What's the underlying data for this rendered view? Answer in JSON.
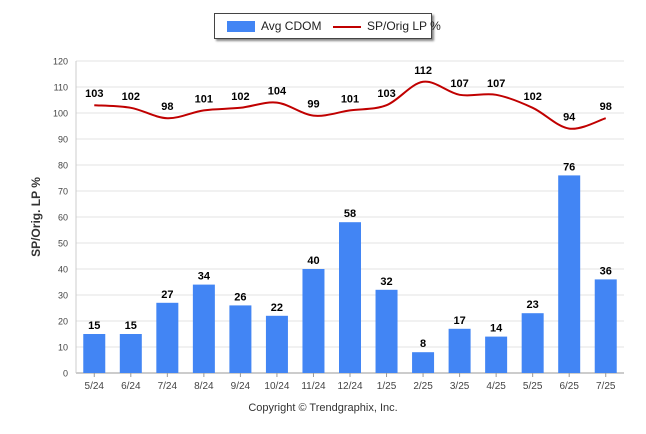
{
  "chart_data": {
    "type": "bar",
    "categories": [
      "5/24",
      "6/24",
      "7/24",
      "8/24",
      "9/24",
      "10/24",
      "11/24",
      "12/24",
      "1/25",
      "2/25",
      "3/25",
      "4/25",
      "5/25",
      "6/25",
      "7/25"
    ],
    "series": [
      {
        "name": "Avg CDOM",
        "type": "bar",
        "values": [
          15,
          15,
          27,
          34,
          26,
          22,
          40,
          58,
          32,
          8,
          17,
          14,
          23,
          76,
          36
        ]
      },
      {
        "name": "SP/Orig LP %",
        "type": "line",
        "values": [
          103,
          102,
          98,
          101,
          102,
          104,
          99,
          101,
          103,
          112,
          107,
          107,
          102,
          94,
          98
        ]
      }
    ],
    "xlabel": "",
    "ylabel": "SP/Orig. LP %",
    "ylim": [
      0,
      120
    ],
    "yticks": [
      0,
      10,
      20,
      30,
      40,
      50,
      60,
      70,
      80,
      90,
      100,
      110,
      120
    ],
    "grid": true,
    "legend": "top-center",
    "colors": {
      "bar": "#4285f4",
      "line": "#c00000"
    }
  },
  "legend": {
    "bar_label": "Avg CDOM",
    "line_label": "SP/Orig LP %"
  },
  "footer": {
    "copyright": "Copyright © Trendgraphix, Inc."
  }
}
